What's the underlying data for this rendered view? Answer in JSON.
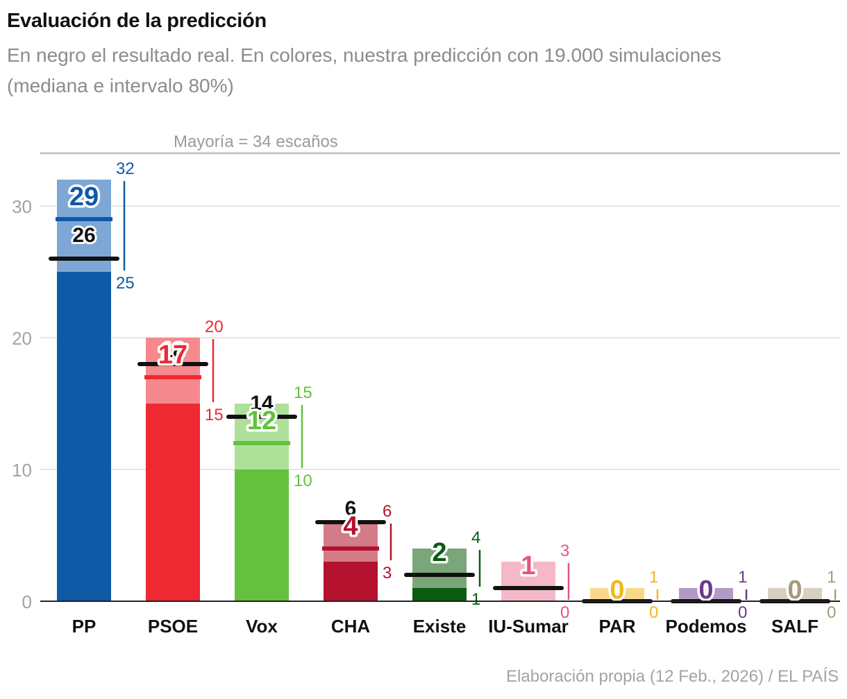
{
  "title": "Evaluación de la predicción",
  "subtitle": "En negro el resultado real. En colores, nuestra predicción con 19.000 simulaciones (mediana e intervalo 80%)",
  "source": "Elaboración propia (12 Feb., 2026) / EL PAÍS",
  "chart_data": {
    "type": "bar",
    "majority_line": {
      "value": 34,
      "label": "Mayoría = 34 escaños"
    },
    "ylim": [
      0,
      34
    ],
    "yticks": [
      0,
      10,
      20,
      30
    ],
    "grid": true,
    "categories": [
      "PP",
      "PSOE",
      "Vox",
      "CHA",
      "Existe",
      "IU-Sumar",
      "PAR",
      "Podemos",
      "SALF"
    ],
    "series": [
      {
        "name": "Predicción (mediana)",
        "values": [
          29,
          17,
          12,
          4,
          2,
          1,
          0,
          0,
          0
        ]
      },
      {
        "name": "Intervalo 80% (mínimo)",
        "values": [
          25,
          15,
          10,
          3,
          1,
          0,
          0,
          0,
          0
        ]
      },
      {
        "name": "Intervalo 80% (máximo)",
        "values": [
          32,
          20,
          15,
          6,
          4,
          3,
          1,
          1,
          1
        ]
      },
      {
        "name": "Resultado real",
        "values": [
          26,
          18,
          14,
          6,
          2,
          1,
          0,
          0,
          0
        ]
      }
    ],
    "colors": {
      "PP": {
        "dark": "#0e5aa7",
        "light": "#7ea7d6"
      },
      "PSOE": {
        "dark": "#ee2932",
        "light": "#f5898d"
      },
      "Vox": {
        "dark": "#63c13d",
        "light": "#aee09a"
      },
      "CHA": {
        "dark": "#b3112e",
        "light": "#d37b89"
      },
      "Existe": {
        "dark": "#0b5a12",
        "light": "#7aa679"
      },
      "IU-Sumar": {
        "dark": "#e8547a",
        "light": "#f5b8c8"
      },
      "PAR": {
        "dark": "#f2b71c",
        "light": "#f8d88a"
      },
      "Podemos": {
        "dark": "#6b3b8e",
        "light": "#b29ac6"
      },
      "SALF": {
        "dark": "#a89a7d",
        "light": "#d7d0c2"
      }
    },
    "actual_color": "#111111"
  }
}
